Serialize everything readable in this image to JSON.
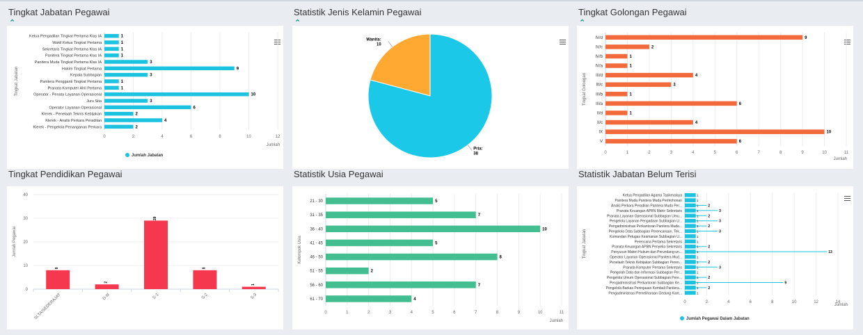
{
  "panels": {
    "p1": {
      "title": "Tingkat Jabatan Pegawai"
    },
    "p2": {
      "title": "Statistik Jenis Kelamin Pegawai"
    },
    "p3": {
      "title": "Tingkat Golongan Pegawai"
    },
    "p4": {
      "title": "Tingkat Pendidikan Pegawai"
    },
    "p5": {
      "title": "Statistik Usia Pegawai"
    },
    "p6": {
      "title": "Statistik Jabatan Belum Terisi"
    }
  },
  "icons": {
    "collapse": "chevron-up-icon",
    "menu": "hamburger-menu-icon"
  },
  "chart_data": [
    {
      "id": "p1",
      "type": "bar",
      "orientation": "horizontal",
      "ylabel": "Tingkat Jabatan",
      "xlabel": "Jumlah",
      "categories": [
        "Ketua Pengadilan Tingkat Pertama Klas IA",
        "Wakil Ketua Tingkat Pertama",
        "Sekretaris Tingkat Pertama Klas IA",
        "Panitera Tingkat Pertama Klas IA",
        "Panitera Muda Tingkat Pertama Klas IA",
        "Hakim Tingkat Pertama",
        "Kepala Subbagian",
        "Panitera Pengganti Tingkat Pertama",
        "Pranata Komputer Ahli Pertama",
        "Operator - Penata Layanan Operasional",
        "Juru Sita",
        "Operator Layanan Operasional",
        "Klerek - Penelaah Teknis Kebijakan",
        "Klerek - Analis Perkara Peradilan",
        "Klerek - Pengelola Penanganan Perkara"
      ],
      "values": [
        1,
        1,
        1,
        1,
        3,
        9,
        3,
        1,
        1,
        10,
        3,
        6,
        2,
        4,
        2
      ],
      "xticks": [
        "0",
        "2",
        "4",
        "6",
        "8",
        "10",
        "12"
      ],
      "xlim": [
        0,
        12
      ],
      "legend": "Jumlah Jabatan",
      "color": "#1cc3e1"
    },
    {
      "id": "p2",
      "type": "pie",
      "slices": [
        {
          "label": "Wanita",
          "value": 10,
          "color": "#ffa832"
        },
        {
          "label": "Pria",
          "value": 38,
          "color": "#1cc8e8"
        }
      ]
    },
    {
      "id": "p3",
      "type": "bar",
      "orientation": "horizontal",
      "ylabel": "Tingkat Golongan",
      "xlabel": "Jumlah",
      "categories": [
        "IV/d",
        "IV/c",
        "IV/b",
        "IV/a",
        "III/d",
        "III/c",
        "III/b",
        "III/a",
        "II/d",
        "II/c",
        "IX",
        "V"
      ],
      "values": [
        9,
        2,
        1,
        1,
        4,
        3,
        1,
        6,
        1,
        4,
        10,
        6
      ],
      "xticks": [
        "0",
        "1",
        "2",
        "3",
        "4",
        "5",
        "6",
        "7",
        "8",
        "9",
        "10",
        "11"
      ],
      "xlim": [
        0,
        11
      ],
      "color": "#f26a3c"
    },
    {
      "id": "p4",
      "type": "bar",
      "orientation": "vertical",
      "ylabel": "Jumlah Pegawai",
      "categories": [
        "SLTA/SEDERAJAT",
        "D-III",
        "S-1",
        "S-2",
        "S-3"
      ],
      "values": [
        8,
        2,
        29,
        8,
        1
      ],
      "yticks": [
        "0",
        "10",
        "20",
        "30",
        "40"
      ],
      "ylim": [
        0,
        40
      ],
      "color": "#f5384d"
    },
    {
      "id": "p5",
      "type": "bar",
      "orientation": "horizontal",
      "ylabel": "Kelompok Usia",
      "xlabel": "Jumlah",
      "categories": [
        "21 - 30",
        "31 - 35",
        "36 - 40",
        "41 - 45",
        "46 - 50",
        "51 - 55",
        "56 - 60",
        "61 - 70"
      ],
      "values": [
        5,
        7,
        10,
        5,
        8,
        2,
        7,
        4
      ],
      "xticks": [
        "0",
        "1",
        "2",
        "3",
        "4",
        "5",
        "6",
        "7",
        "8",
        "9",
        "10",
        "11"
      ],
      "xlim": [
        0,
        11
      ],
      "color": "#43be90"
    },
    {
      "id": "p6",
      "type": "bar",
      "orientation": "horizontal",
      "ylabel": "Tingkat Jabatan",
      "xlabel": "Jumlah",
      "categories": [
        "Ketua Pengadilan Agama Tasikmalaya",
        "Panitera Muda Panitera Muda Permohonan",
        "Analis Perkara Peradilan Panitera Muda Per...",
        "Pranata Keuangan APBN Mahir Sekretaris",
        "Pranata Layanan Operasional Subbagian Umu...",
        "Pengelola Layanan Pengadaan Subbagian U...",
        "Pengadministrasi Perkantoran Panitera Muda...",
        "Pengelola Data Subbagian Perencanaan, Tek...",
        "Komandan Petugas Keamanan Subbagian U...",
        "Perencana Pertama Sekretaris",
        "Pranata Keuangan APBN Penyelia Sekretaris",
        "Penyusun Materi Hukum dan Perundang-un...",
        "Operator Layanan Operasional Panitera Mud...",
        "Penelaah Teknis Kebijakan Subbagian Peren...",
        "Pranata Komputer Pertama Sekretaris",
        "Pengolah Data dan Informasi Subbagian Per...",
        "Pengelola Umum Operasional Subbagian Pere...",
        "Pengadministrasi Perkantoran Subbagian Ke...",
        "Pengelola Barkas Peninjauan Kembali Panitera...",
        "Pengadministrasi Pemeliharaan Gedung Kant..."
      ],
      "bar_values": [
        1,
        1,
        1,
        1,
        1,
        1,
        1,
        1,
        1,
        1,
        1,
        1,
        1,
        1,
        1,
        1,
        1,
        1,
        1,
        1
      ],
      "line_values": [
        0,
        0,
        2,
        3,
        2,
        3,
        2,
        3,
        0,
        0,
        2,
        13,
        0,
        2,
        3,
        0,
        2,
        9,
        2,
        0
      ],
      "xticks": [
        "0",
        "2",
        "4",
        "6",
        "8",
        "10",
        "12",
        "14"
      ],
      "xlim": [
        0,
        14
      ],
      "legend": "Jumlah Pegawai Dalam Jabatan",
      "color": "#1cc3e1"
    }
  ]
}
